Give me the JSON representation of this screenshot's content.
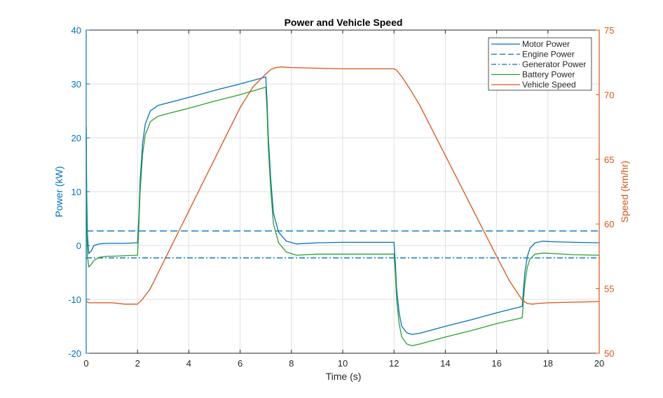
{
  "chart_data": {
    "type": "line",
    "title": "Power and Vehicle Speed",
    "xlabel": "Time (s)",
    "ylabel_left": "Power (kW)",
    "ylabel_right": "Speed (km/hr)",
    "xlim": [
      0,
      20
    ],
    "ylim_left": [
      -20,
      40
    ],
    "ylim_right": [
      50,
      75
    ],
    "xticks": [
      0,
      2,
      4,
      6,
      8,
      10,
      12,
      14,
      16,
      18,
      20
    ],
    "yticks_left": [
      -20,
      -10,
      0,
      10,
      20,
      30,
      40
    ],
    "yticks_right": [
      50,
      55,
      60,
      65,
      70,
      75
    ],
    "grid": true,
    "legend_position": "top-right",
    "colors": {
      "left_axis": "#0072BD",
      "right_axis": "#D95319",
      "motor": "#0072BD",
      "engine": "#0072BD",
      "generator": "#0072BD",
      "battery": "#2CA02C",
      "speed": "#D95319"
    },
    "series": [
      {
        "name": "Motor Power",
        "axis": "left",
        "style": "solid",
        "x": [
          0,
          0.02,
          0.05,
          0.1,
          0.2,
          0.3,
          0.5,
          0.8,
          1.0,
          1.5,
          2.0,
          2.05,
          2.1,
          2.2,
          2.3,
          2.5,
          2.8,
          3.2,
          4.0,
          5.0,
          6.0,
          7.0,
          7.05,
          7.1,
          7.2,
          7.3,
          7.5,
          7.8,
          8.2,
          9.0,
          10.0,
          11.0,
          12.0,
          12.05,
          12.1,
          12.2,
          12.3,
          12.5,
          12.7,
          13.0,
          14.0,
          15.0,
          16.0,
          17.0,
          17.05,
          17.1,
          17.2,
          17.3,
          17.5,
          17.8,
          18.2,
          19.0,
          20.0
        ],
        "values": [
          22,
          10,
          2,
          -1.5,
          -1.0,
          0.0,
          0.3,
          0.4,
          0.4,
          0.4,
          0.5,
          5,
          12,
          19,
          22.5,
          25.0,
          26.0,
          26.5,
          27.5,
          28.8,
          30.0,
          31.3,
          27,
          20,
          12,
          6,
          2.5,
          0.8,
          0.3,
          0.5,
          0.6,
          0.6,
          0.6,
          -3,
          -8,
          -12.5,
          -15,
          -16.2,
          -16.5,
          -16.3,
          -15.0,
          -13.8,
          -12.5,
          -11.3,
          -8,
          -5,
          -2,
          -0.5,
          0.5,
          0.8,
          0.7,
          0.6,
          0.5
        ]
      },
      {
        "name": "Engine Power",
        "axis": "left",
        "style": "dashed",
        "x": [
          0,
          20
        ],
        "values": [
          2.7,
          2.7
        ]
      },
      {
        "name": "Generator Power",
        "axis": "left",
        "style": "dashdot",
        "x": [
          0,
          20
        ],
        "values": [
          -2.3,
          -2.3
        ]
      },
      {
        "name": "Battery Power",
        "axis": "left",
        "style": "solid",
        "x": [
          0,
          0.02,
          0.05,
          0.1,
          0.2,
          0.3,
          0.5,
          0.8,
          1.0,
          1.5,
          2.0,
          2.05,
          2.1,
          2.2,
          2.3,
          2.5,
          2.8,
          3.2,
          4.0,
          5.0,
          6.0,
          7.0,
          7.05,
          7.1,
          7.2,
          7.3,
          7.5,
          7.8,
          8.2,
          9.0,
          10.0,
          11.0,
          12.0,
          12.05,
          12.1,
          12.2,
          12.3,
          12.5,
          12.7,
          13.0,
          14.0,
          15.0,
          16.0,
          17.0,
          17.05,
          17.1,
          17.2,
          17.3,
          17.5,
          17.8,
          18.2,
          19.0,
          20.0
        ],
        "values": [
          20,
          5,
          -2,
          -4.0,
          -3.5,
          -2.8,
          -2.2,
          -2.0,
          -2.0,
          -1.9,
          -1.8,
          3,
          10,
          17,
          20.5,
          23.0,
          24.0,
          24.5,
          25.5,
          26.8,
          28.0,
          29.4,
          25,
          18,
          10,
          4,
          0.5,
          -1.2,
          -1.8,
          -1.6,
          -1.6,
          -1.6,
          -1.6,
          -5,
          -10,
          -14.5,
          -17,
          -18.3,
          -18.6,
          -18.3,
          -17.0,
          -15.8,
          -14.5,
          -13.4,
          -10,
          -7,
          -4,
          -2.5,
          -1.6,
          -1.4,
          -1.5,
          -1.7,
          -1.8
        ]
      },
      {
        "name": "Vehicle Speed",
        "axis": "right",
        "style": "solid",
        "x": [
          0,
          0.1,
          0.5,
          1.0,
          1.5,
          1.8,
          2.0,
          2.2,
          2.5,
          3.0,
          4.0,
          5.0,
          6.0,
          6.5,
          7.0,
          7.2,
          7.4,
          7.6,
          8.0,
          9.0,
          10.0,
          11.0,
          12.0,
          12.1,
          12.3,
          12.6,
          13.0,
          14.0,
          15.0,
          16.0,
          16.5,
          17.0,
          17.2,
          17.4,
          17.6,
          18.0,
          19.0,
          20.0
        ],
        "values": [
          54.0,
          53.9,
          53.9,
          53.9,
          53.8,
          53.8,
          53.8,
          54.2,
          55.0,
          57.0,
          61.0,
          65.0,
          69.0,
          70.6,
          71.6,
          71.95,
          72.1,
          72.15,
          72.1,
          72.05,
          72.0,
          72.0,
          72.0,
          71.9,
          71.4,
          70.5,
          69.2,
          65.3,
          61.4,
          57.5,
          55.6,
          54.1,
          53.85,
          53.8,
          53.85,
          53.9,
          53.95,
          54.0
        ]
      }
    ]
  }
}
